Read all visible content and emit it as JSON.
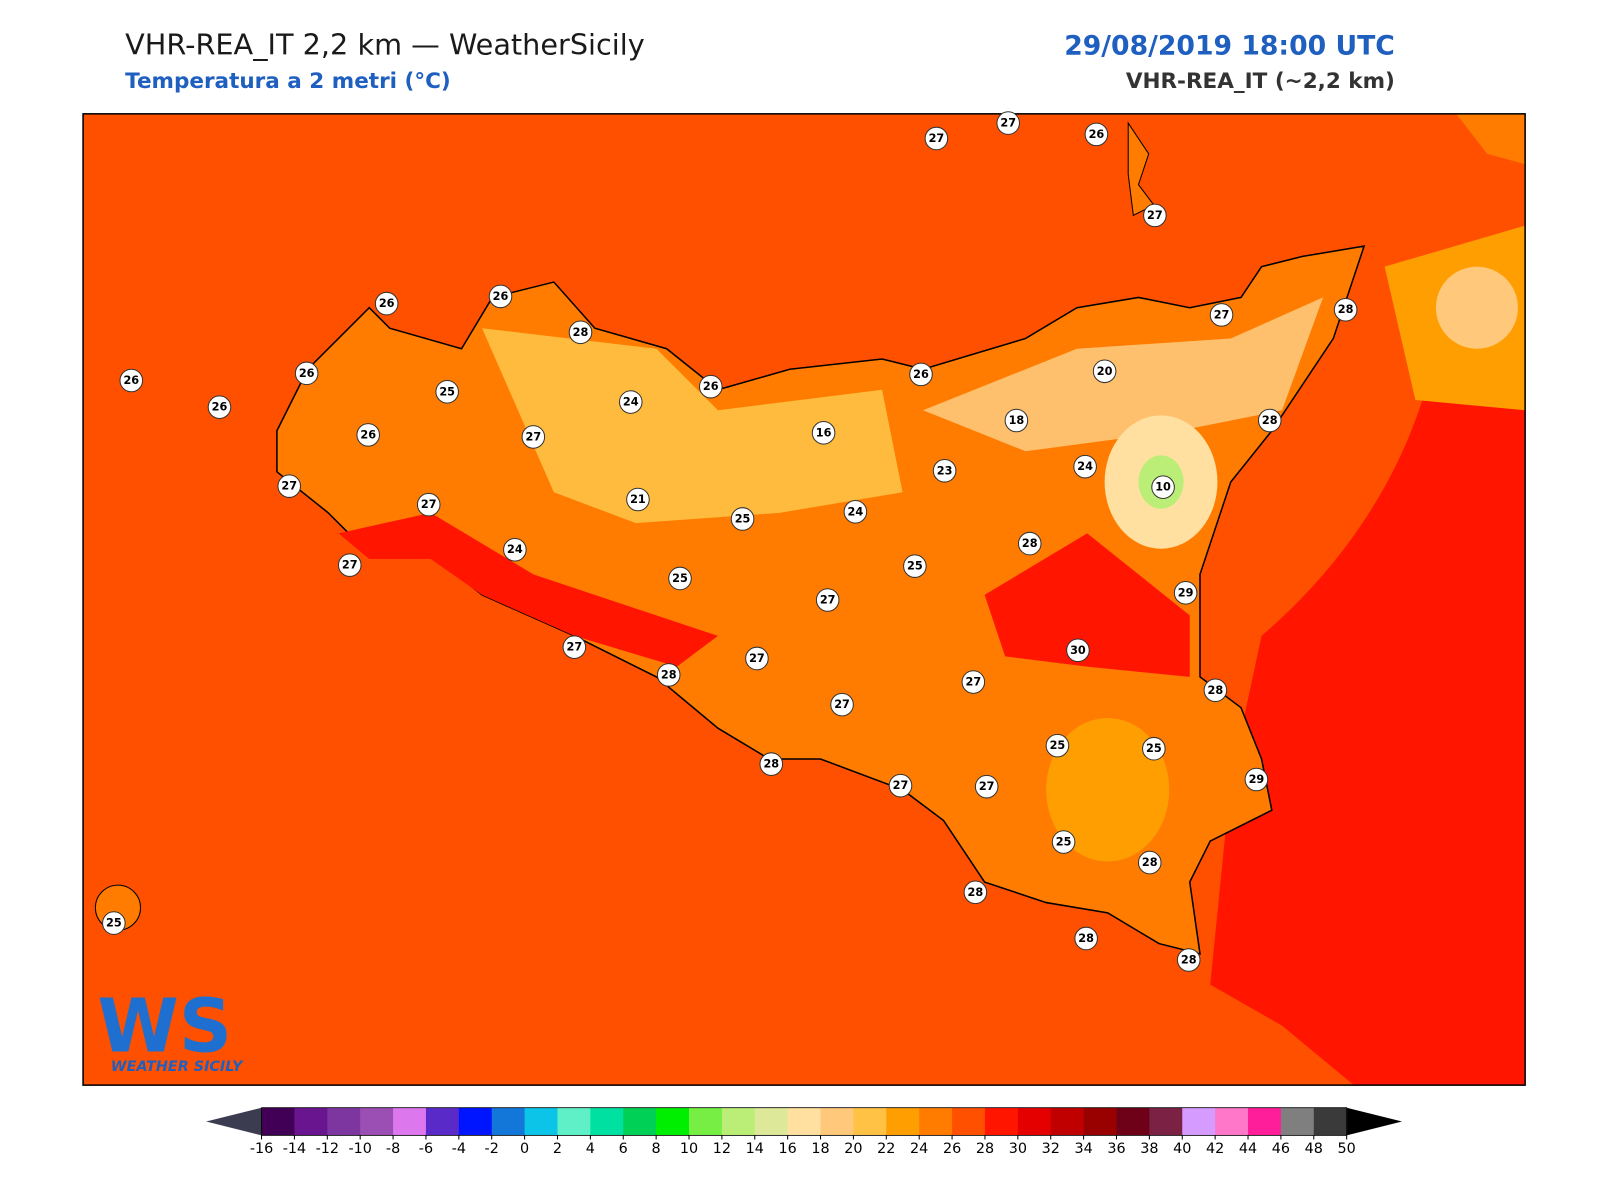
{
  "header": {
    "title": "VHR-REA_IT 2,2 km — WeatherSicily",
    "subtitle": "Temperatura a 2 metri (°C)",
    "datetime": "29/08/2019 18:00 UTC",
    "model": "VHR-REA_IT (~2,2 km)"
  },
  "logo": {
    "text": "WEATHER SICILY"
  },
  "stations": [
    27,
    27,
    26,
    27,
    26,
    26,
    28,
    27,
    28,
    26,
    26,
    26,
    25,
    24,
    26,
    26,
    20,
    26,
    27,
    16,
    18,
    28,
    27,
    27,
    21,
    23,
    24,
    10,
    25,
    24,
    27,
    24,
    28,
    25,
    25,
    27,
    29,
    27,
    28,
    27,
    30,
    27,
    28,
    27,
    25,
    25,
    28,
    27,
    27,
    29,
    25,
    28,
    28,
    25,
    28,
    28
  ],
  "colorbar": {
    "ticks": [
      -16,
      -14,
      -12,
      -10,
      -8,
      -6,
      -4,
      -2,
      0,
      2,
      4,
      6,
      8,
      10,
      12,
      14,
      16,
      18,
      20,
      22,
      24,
      26,
      28,
      30,
      32,
      34,
      36,
      38,
      40,
      42,
      44,
      46,
      48,
      50
    ],
    "colors": [
      "#410055",
      "#6a1590",
      "#7d35a0",
      "#9b4fb5",
      "#dd77ee",
      "#5a2ac8",
      "#0015ff",
      "#1277d8",
      "#0cc4e8",
      "#60f0c8",
      "#00e0a0",
      "#00d055",
      "#00ee00",
      "#77ee44",
      "#bbee77",
      "#dde899",
      "#ffe0a0",
      "#ffc87a",
      "#ffc244",
      "#ff9e00",
      "#ff7c00",
      "#ff5000",
      "#ff1500",
      "#e50000",
      "#c00000",
      "#990000",
      "#6e0018",
      "#7b2244",
      "#d59bff",
      "#ff77c8",
      "#ff1e99",
      "#7f7f7f",
      "#3a3a3a"
    ],
    "under": "#3c3c50",
    "over": "#000000"
  }
}
